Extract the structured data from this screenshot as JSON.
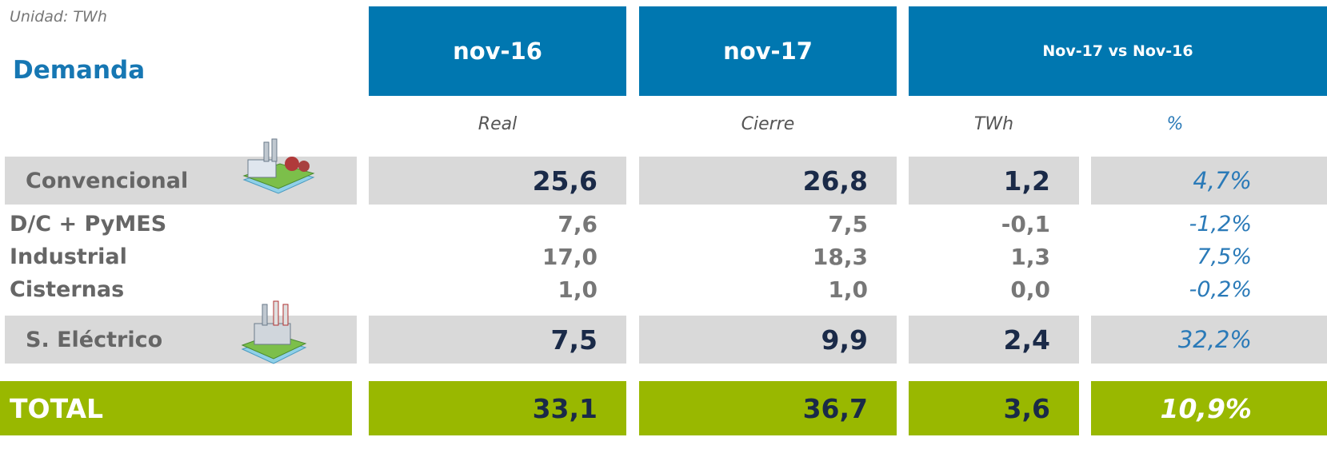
{
  "unit": "Unidad: TWh",
  "title": "Demanda",
  "headers": [
    "nov-16",
    "nov-17",
    "Nov-17 vs Nov-16"
  ],
  "subheaders": [
    "Real",
    "Cierre",
    "TWh",
    "%"
  ],
  "rows": [
    {
      "label": "Convencional",
      "values": [
        "25,6",
        "26,8",
        "1,2",
        "4,7%"
      ]
    },
    {
      "label": "D/C + PyMES",
      "values": [
        "7,6",
        "7,5",
        "-0,1",
        "-1,2%"
      ]
    },
    {
      "label": "Industrial",
      "values": [
        "17,0",
        "18,3",
        "1,3",
        "7,5%"
      ]
    },
    {
      "label": "Cisternas",
      "values": [
        "1,0",
        "1,0",
        "0,0",
        "-0,2%"
      ]
    },
    {
      "label": "S. Eléctrico",
      "values": [
        "7,5",
        "9,9",
        "2,4",
        "32,2%"
      ]
    },
    {
      "label": "TOTAL",
      "values": [
        "33,1",
        "36,7",
        "3,6",
        "10,9%"
      ]
    }
  ]
}
